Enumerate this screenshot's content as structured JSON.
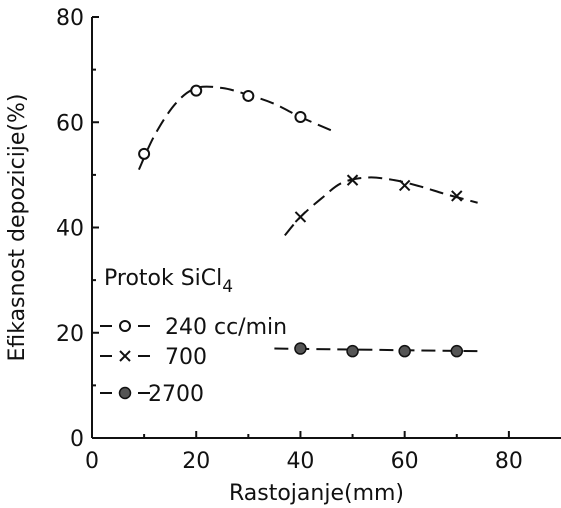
{
  "chart_data": {
    "type": "line",
    "xlabel": "Rastojanje(mm)",
    "ylabel": "Efikasnost depozicije(%)",
    "xlim": [
      0,
      90
    ],
    "ylim": [
      0,
      80
    ],
    "x_ticks": [
      "0",
      "20",
      "40",
      "60",
      "80"
    ],
    "y_ticks": [
      "0",
      "20",
      "40",
      "60",
      "80"
    ],
    "x_tick_values": [
      0,
      20,
      40,
      60,
      80
    ],
    "y_tick_values": [
      0,
      20,
      40,
      60,
      80
    ],
    "grid": false,
    "legend": {
      "title_main": "Protok SiCl",
      "title_sub": "4",
      "placement": "left-middle"
    },
    "series": [
      {
        "name": "240 cc/min",
        "marker": "circle",
        "points": [
          [
            10,
            54
          ],
          [
            20,
            66
          ],
          [
            30,
            65
          ],
          [
            40,
            61
          ]
        ],
        "curve": [
          [
            9,
            51
          ],
          [
            12,
            57.5
          ],
          [
            16,
            63.5
          ],
          [
            20,
            66.5
          ],
          [
            25,
            66.5
          ],
          [
            30,
            65.2
          ],
          [
            35,
            63.5
          ],
          [
            40,
            61
          ],
          [
            47,
            58
          ]
        ]
      },
      {
        "name": "700",
        "marker": "x",
        "points": [
          [
            40,
            42
          ],
          [
            50,
            49
          ],
          [
            60,
            48
          ],
          [
            70,
            46
          ]
        ],
        "curve": [
          [
            37,
            38.5
          ],
          [
            40,
            42
          ],
          [
            44,
            45.5
          ],
          [
            48,
            48.5
          ],
          [
            53,
            49.5
          ],
          [
            58,
            49
          ],
          [
            63,
            47.8
          ],
          [
            68,
            46.3
          ],
          [
            74,
            44.7
          ]
        ]
      },
      {
        "name": "2700",
        "marker": "filled-circle",
        "points": [
          [
            40,
            17
          ],
          [
            50,
            16.5
          ],
          [
            60,
            16.5
          ],
          [
            70,
            16.5
          ]
        ],
        "curve": [
          [
            35,
            17
          ],
          [
            74,
            16.5
          ]
        ]
      }
    ]
  }
}
